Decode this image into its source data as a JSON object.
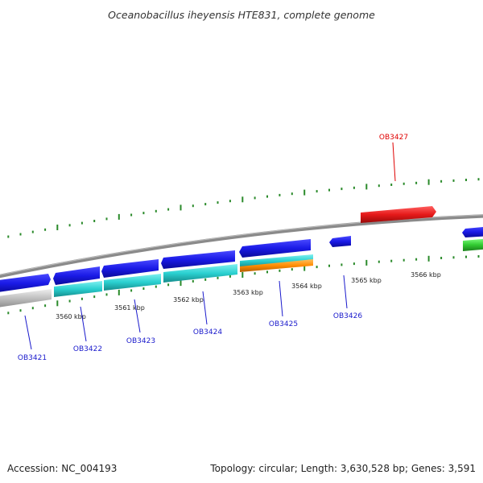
{
  "title": "Oceanobacillus iheyensis HTE831, complete genome",
  "footer": {
    "accession": "Accession: NC_004193",
    "summary": "Topology: circular; Length: 3,630,528 bp; Genes: 3,591"
  },
  "colors": {
    "backbone": "#808080",
    "ticks": "#2a8a2a",
    "label_default": "#1a1acc",
    "label_highlight": "#e00000",
    "forward_gene": "#1a1ae6",
    "reverse_gene": "#2ad0d0",
    "rna_gene": "#ff8c00",
    "red_gene": "#e61a1a",
    "green_gene": "#33cc33",
    "gray_gene": "#bdbdbd"
  },
  "tick_labels": [
    {
      "text": "3560 kbp",
      "kbp": 3560
    },
    {
      "text": "3561 kbp",
      "kbp": 3561
    },
    {
      "text": "3562 kbp",
      "kbp": 3562
    },
    {
      "text": "3563 kbp",
      "kbp": 3563
    },
    {
      "text": "3564 kbp",
      "kbp": 3564
    },
    {
      "text": "3565 kbp",
      "kbp": 3565
    },
    {
      "text": "3566 kbp",
      "kbp": 3566
    }
  ],
  "genes": [
    {
      "id": "OB3421",
      "color": "label_default"
    },
    {
      "id": "OB3422",
      "color": "label_default"
    },
    {
      "id": "OB3423",
      "color": "label_default"
    },
    {
      "id": "OB3424",
      "color": "label_default"
    },
    {
      "id": "OB3425",
      "color": "label_default"
    },
    {
      "id": "OB3426",
      "color": "label_default"
    },
    {
      "id": "OB3427",
      "color": "label_highlight"
    }
  ]
}
